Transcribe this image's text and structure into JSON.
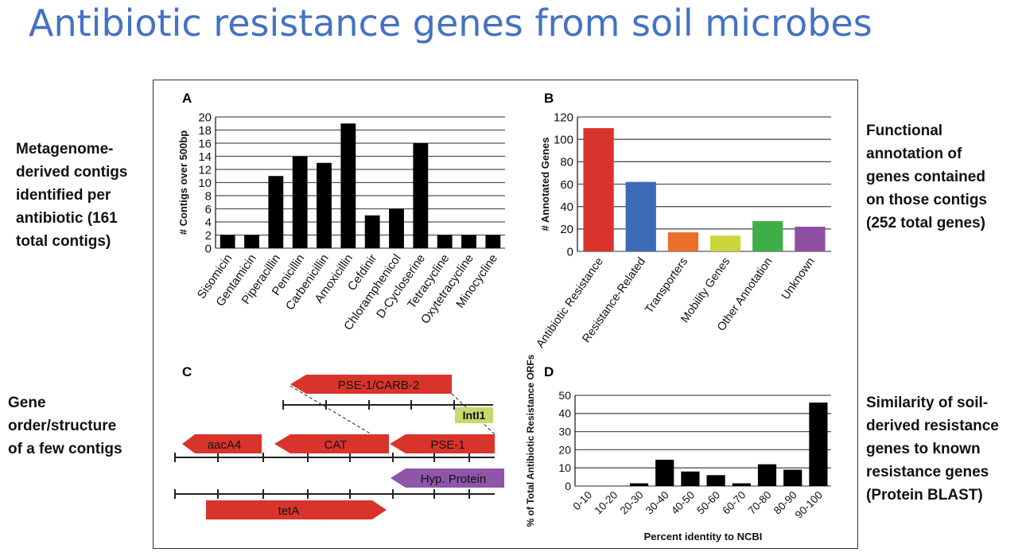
{
  "title": "Antibiotic resistance genes from soil microbes",
  "notes": {
    "a": [
      "Metagenome-",
      "derived contigs",
      "identified per",
      "antibiotic (161",
      "total contigs)"
    ],
    "b": [
      "Functional",
      "annotation of",
      "genes contained",
      "on those contigs",
      "(252 total genes)"
    ],
    "c": [
      "Gene",
      "order/structure",
      "of a few contigs"
    ],
    "d": [
      "Similarity of soil-",
      "derived resistance",
      "genes to known",
      "resistance genes",
      "(Protein BLAST)"
    ]
  },
  "colors": {
    "title": "#4472c4",
    "gene_red": "#d9342b",
    "intl1": "#c9d86a",
    "hyp_protein": "#8e55a8"
  },
  "chart_data": [
    {
      "panel": "A",
      "type": "bar",
      "ylabel": "# Contigs over 500bp",
      "ylim": [
        0,
        20
      ],
      "yticks": [
        0,
        2,
        4,
        6,
        8,
        10,
        12,
        14,
        16,
        18,
        20
      ],
      "grid": true,
      "categories": [
        "Sisomicin",
        "Gentamicin",
        "Piperacillin",
        "Penicillin",
        "Carbenicillin",
        "Amoxicillin",
        "Cefdinir",
        "Chloramphenicol",
        "D-Cycloserine",
        "Tetracycline",
        "Oxytetracycline",
        "Minocycline"
      ],
      "values": [
        2,
        2,
        11,
        14,
        13,
        19,
        5,
        6,
        16,
        2,
        2,
        2
      ],
      "bar_color": "#000000"
    },
    {
      "panel": "B",
      "type": "bar",
      "ylabel": "# Annotated Genes",
      "ylim": [
        0,
        120
      ],
      "yticks": [
        0,
        20,
        40,
        60,
        80,
        100,
        120
      ],
      "grid": true,
      "categories": [
        "Antibiotic Resistance",
        "Resistance-Related",
        "Transporters",
        "Mobility Genes",
        "Other Annotation",
        "Unknown"
      ],
      "values": [
        110,
        62,
        17,
        14,
        27,
        22
      ],
      "colors": [
        "#d9342b",
        "#3b6bb5",
        "#e8702a",
        "#cbd43a",
        "#3fae49",
        "#8e4fa0"
      ]
    },
    {
      "panel": "D",
      "type": "bar",
      "ylabel": "% of Total Antibiotic Resistance ORFs",
      "xlabel": "Percent identity to NCBI",
      "ylim": [
        0,
        50
      ],
      "yticks": [
        0,
        10,
        20,
        30,
        40,
        50
      ],
      "grid": true,
      "categories": [
        "0-10",
        "10-20",
        "20-30",
        "30-40",
        "40-50",
        "50-60",
        "60-70",
        "70-80",
        "80-90",
        "90-100"
      ],
      "values": [
        0,
        0,
        1.5,
        14.5,
        8,
        6,
        1.5,
        12,
        9,
        46
      ],
      "bar_color": "#000000"
    }
  ],
  "panel_c": {
    "label": "C",
    "genes": [
      "PSE-1/CARB-2",
      "IntI1",
      "aacA4",
      "CAT",
      "PSE-1",
      "Hyp. Protein",
      "tetA"
    ]
  }
}
